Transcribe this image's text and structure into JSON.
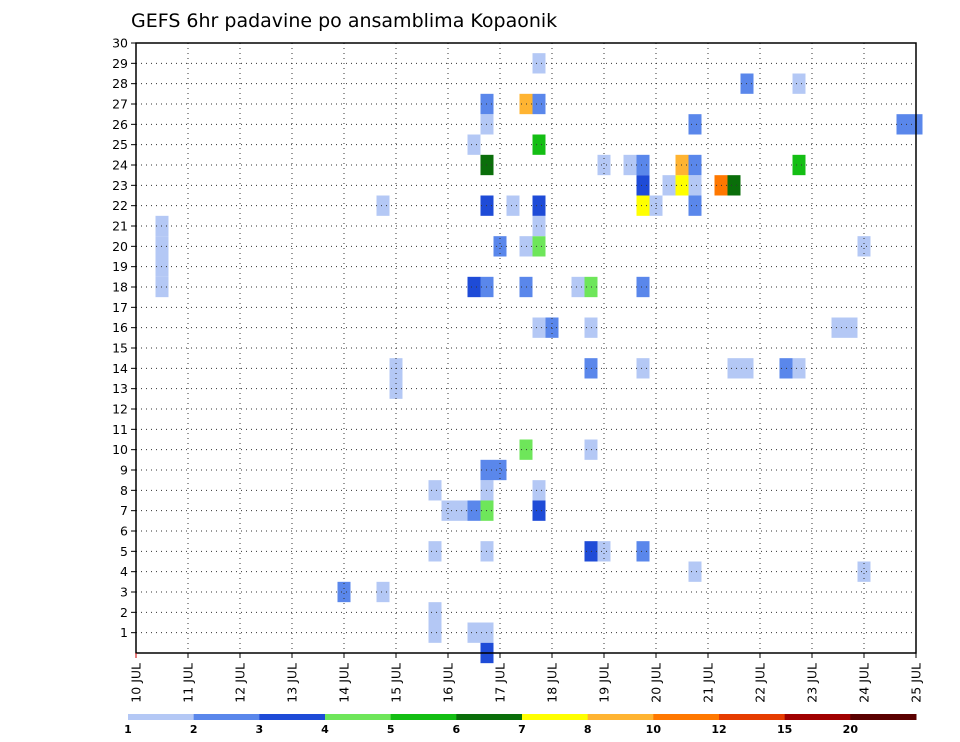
{
  "chart_data": {
    "type": "heatmap",
    "title": "GEFS 6hr padavine po ansamblima Kopaonik",
    "x_tick_labels": [
      "10 JUL",
      "11 JUL",
      "12 JUL",
      "13 JUL",
      "14 JUL",
      "15 JUL",
      "16 JUL",
      "17 JUL",
      "18 JUL",
      "19 JUL",
      "20 JUL",
      "21 JUL",
      "22 JUL",
      "23 JUL",
      "24 JUL",
      "25 JUL"
    ],
    "xlim": [
      0,
      15
    ],
    "ylim": [
      0,
      30
    ],
    "y_tick_labels": [
      "1",
      "2",
      "3",
      "4",
      "5",
      "6",
      "7",
      "8",
      "9",
      "10",
      "11",
      "12",
      "13",
      "14",
      "15",
      "16",
      "17",
      "18",
      "19",
      "20",
      "21",
      "22",
      "23",
      "24",
      "25",
      "26",
      "27",
      "28",
      "29",
      "30"
    ],
    "grid": true,
    "levels": [
      {
        "label": "1",
        "color": "#b4c8f5"
      },
      {
        "label": "2",
        "color": "#5a87eb"
      },
      {
        "label": "3",
        "color": "#1e4bd7"
      },
      {
        "label": "4",
        "color": "#6ee65a"
      },
      {
        "label": "5",
        "color": "#14be14"
      },
      {
        "label": "6",
        "color": "#0a6e0a"
      },
      {
        "label": "7",
        "color": "#ffff00"
      },
      {
        "label": "8",
        "color": "#ffb432"
      },
      {
        "label": "10",
        "color": "#ff7800"
      },
      {
        "label": "12",
        "color": "#e63c00"
      },
      {
        "label": "15",
        "color": "#a00000"
      },
      {
        "label": "20",
        "color": "#5a0000"
      }
    ],
    "cells": [
      {
        "t": 0.5,
        "m": 20,
        "lvl": 0
      },
      {
        "t": 0.5,
        "m": 21,
        "lvl": 0
      },
      {
        "t": 0.5,
        "m": 18,
        "lvl": 0
      },
      {
        "t": 0.5,
        "m": 19,
        "lvl": 0
      },
      {
        "t": 4.0,
        "m": 3,
        "lvl": 1
      },
      {
        "t": 4.75,
        "m": 3,
        "lvl": 0
      },
      {
        "t": 4.75,
        "m": 22,
        "lvl": 0
      },
      {
        "t": 5.0,
        "m": 13,
        "lvl": 0
      },
      {
        "t": 5.0,
        "m": 14,
        "lvl": 0
      },
      {
        "t": 5.75,
        "m": 1,
        "lvl": 0
      },
      {
        "t": 5.75,
        "m": 2,
        "lvl": 0
      },
      {
        "t": 5.75,
        "m": 5,
        "lvl": 0
      },
      {
        "t": 5.75,
        "m": 8,
        "lvl": 0
      },
      {
        "t": 6.0,
        "m": 7,
        "lvl": 0
      },
      {
        "t": 6.25,
        "m": 7,
        "lvl": 0
      },
      {
        "t": 6.5,
        "m": 1,
        "lvl": 0
      },
      {
        "t": 6.75,
        "m": 1,
        "lvl": 0
      },
      {
        "t": 6.5,
        "m": 7,
        "lvl": 1
      },
      {
        "t": 6.75,
        "m": 7,
        "lvl": 3
      },
      {
        "t": 6.5,
        "m": 18,
        "lvl": 2
      },
      {
        "t": 6.75,
        "m": 18,
        "lvl": 1
      },
      {
        "t": 6.5,
        "m": 25,
        "lvl": 0
      },
      {
        "t": 6.75,
        "m": 0,
        "lvl": 2
      },
      {
        "t": 6.75,
        "m": 5,
        "lvl": 0
      },
      {
        "t": 6.75,
        "m": 8,
        "lvl": 0
      },
      {
        "t": 6.75,
        "m": 9,
        "lvl": 1
      },
      {
        "t": 7.0,
        "m": 9,
        "lvl": 1
      },
      {
        "t": 6.75,
        "m": 22,
        "lvl": 2
      },
      {
        "t": 6.75,
        "m": 24,
        "lvl": 5
      },
      {
        "t": 6.75,
        "m": 26,
        "lvl": 0
      },
      {
        "t": 6.75,
        "m": 27,
        "lvl": 1
      },
      {
        "t": 7.0,
        "m": 20,
        "lvl": 1
      },
      {
        "t": 7.25,
        "m": 22,
        "lvl": 0
      },
      {
        "t": 7.5,
        "m": 10,
        "lvl": 3
      },
      {
        "t": 7.5,
        "m": 18,
        "lvl": 1
      },
      {
        "t": 7.5,
        "m": 20,
        "lvl": 0
      },
      {
        "t": 7.5,
        "m": 27,
        "lvl": 7
      },
      {
        "t": 7.75,
        "m": 7,
        "lvl": 2
      },
      {
        "t": 7.75,
        "m": 8,
        "lvl": 0
      },
      {
        "t": 7.75,
        "m": 16,
        "lvl": 0
      },
      {
        "t": 7.75,
        "m": 20,
        "lvl": 3
      },
      {
        "t": 7.75,
        "m": 21,
        "lvl": 0
      },
      {
        "t": 7.75,
        "m": 22,
        "lvl": 2
      },
      {
        "t": 7.75,
        "m": 25,
        "lvl": 4
      },
      {
        "t": 7.75,
        "m": 27,
        "lvl": 1
      },
      {
        "t": 7.75,
        "m": 29,
        "lvl": 0
      },
      {
        "t": 8.0,
        "m": 16,
        "lvl": 1
      },
      {
        "t": 8.5,
        "m": 18,
        "lvl": 0
      },
      {
        "t": 8.75,
        "m": 5,
        "lvl": 2
      },
      {
        "t": 8.75,
        "m": 10,
        "lvl": 0
      },
      {
        "t": 8.75,
        "m": 14,
        "lvl": 1
      },
      {
        "t": 8.75,
        "m": 16,
        "lvl": 0
      },
      {
        "t": 8.75,
        "m": 18,
        "lvl": 3
      },
      {
        "t": 9.0,
        "m": 5,
        "lvl": 0
      },
      {
        "t": 9.0,
        "m": 24,
        "lvl": 0
      },
      {
        "t": 9.5,
        "m": 24,
        "lvl": 0
      },
      {
        "t": 9.75,
        "m": 5,
        "lvl": 1
      },
      {
        "t": 9.75,
        "m": 14,
        "lvl": 0
      },
      {
        "t": 9.75,
        "m": 18,
        "lvl": 1
      },
      {
        "t": 9.75,
        "m": 22,
        "lvl": 6
      },
      {
        "t": 9.75,
        "m": 23,
        "lvl": 2
      },
      {
        "t": 9.75,
        "m": 24,
        "lvl": 1
      },
      {
        "t": 10.0,
        "m": 22,
        "lvl": 0
      },
      {
        "t": 10.25,
        "m": 23,
        "lvl": 0
      },
      {
        "t": 10.5,
        "m": 23,
        "lvl": 6
      },
      {
        "t": 10.5,
        "m": 24,
        "lvl": 7
      },
      {
        "t": 10.75,
        "m": 4,
        "lvl": 0
      },
      {
        "t": 10.75,
        "m": 22,
        "lvl": 1
      },
      {
        "t": 10.75,
        "m": 23,
        "lvl": 0
      },
      {
        "t": 10.75,
        "m": 24,
        "lvl": 1
      },
      {
        "t": 10.75,
        "m": 26,
        "lvl": 1
      },
      {
        "t": 11.25,
        "m": 23,
        "lvl": 8
      },
      {
        "t": 11.5,
        "m": 14,
        "lvl": 0
      },
      {
        "t": 11.5,
        "m": 23,
        "lvl": 5
      },
      {
        "t": 11.75,
        "m": 14,
        "lvl": 0
      },
      {
        "t": 11.75,
        "m": 28,
        "lvl": 1
      },
      {
        "t": 12.5,
        "m": 14,
        "lvl": 1
      },
      {
        "t": 12.75,
        "m": 14,
        "lvl": 0
      },
      {
        "t": 12.75,
        "m": 24,
        "lvl": 4
      },
      {
        "t": 12.75,
        "m": 28,
        "lvl": 0
      },
      {
        "t": 13.5,
        "m": 16,
        "lvl": 0
      },
      {
        "t": 13.75,
        "m": 16,
        "lvl": 0
      },
      {
        "t": 14.0,
        "m": 4,
        "lvl": 0
      },
      {
        "t": 14.0,
        "m": 20,
        "lvl": 0
      },
      {
        "t": 14.75,
        "m": 26,
        "lvl": 1
      },
      {
        "t": 15.0,
        "m": 26,
        "lvl": 1
      }
    ]
  }
}
